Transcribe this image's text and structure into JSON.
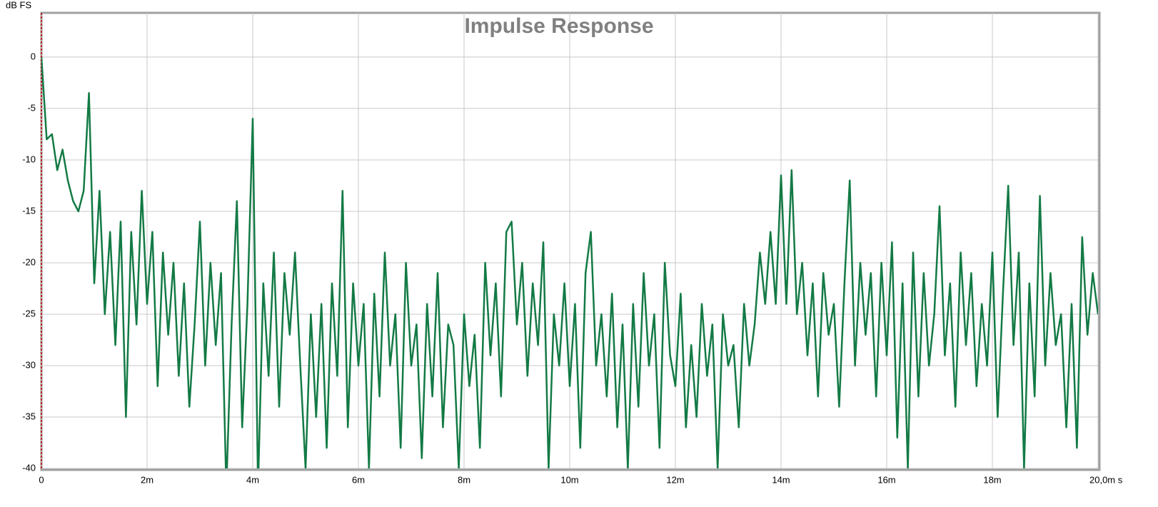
{
  "chart_data": {
    "type": "line",
    "title": "Impulse Response",
    "y_label": "dB FS",
    "color": "#137a45",
    "grid": true,
    "xlim": [
      0,
      20
    ],
    "ylim": [
      -40,
      4.3
    ],
    "xticks": [
      0,
      {
        "value": 2,
        "label": "2m"
      },
      {
        "value": 4,
        "label": "4m"
      },
      {
        "value": 6,
        "label": "6m"
      },
      {
        "value": 8,
        "label": "8m"
      },
      {
        "value": 10,
        "label": "10m"
      },
      {
        "value": 12,
        "label": "12m"
      },
      {
        "value": 14,
        "label": "14m"
      },
      {
        "value": 16,
        "label": "16m"
      },
      {
        "value": 18,
        "label": "18m"
      },
      {
        "value": 20,
        "label": "20,0m s"
      }
    ],
    "yticks": [
      0,
      -5,
      -10,
      -15,
      -20,
      -25,
      -30,
      -35,
      -40
    ],
    "x": [
      0,
      0.1,
      0.2,
      0.3,
      0.4,
      0.5,
      0.6,
      0.7,
      0.8,
      0.9,
      1,
      1.1,
      1.2,
      1.3,
      1.4,
      1.5,
      1.6,
      1.7,
      1.8,
      1.9,
      2,
      2.1,
      2.2,
      2.3,
      2.4,
      2.5,
      2.6,
      2.7,
      2.8,
      2.9,
      3,
      3.1,
      3.2,
      3.3,
      3.4,
      3.5,
      3.6,
      3.7,
      3.8,
      3.9,
      4,
      4.1,
      4.2,
      4.3,
      4.4,
      4.5,
      4.6,
      4.7,
      4.8,
      4.9,
      5,
      5.1,
      5.2,
      5.3,
      5.4,
      5.5,
      5.6,
      5.7,
      5.8,
      5.9,
      6,
      6.1,
      6.2,
      6.3,
      6.4,
      6.5,
      6.6,
      6.7,
      6.8,
      6.9,
      7,
      7.1,
      7.2,
      7.3,
      7.4,
      7.5,
      7.6,
      7.7,
      7.8,
      7.9,
      8,
      8.1,
      8.2,
      8.3,
      8.4,
      8.5,
      8.6,
      8.7,
      8.8,
      8.9,
      9,
      9.1,
      9.2,
      9.3,
      9.4,
      9.5,
      9.6,
      9.7,
      9.8,
      9.9,
      10,
      10.1,
      10.2,
      10.3,
      10.4,
      10.5,
      10.6,
      10.7,
      10.8,
      10.9,
      11,
      11.1,
      11.2,
      11.3,
      11.4,
      11.5,
      11.6,
      11.7,
      11.8,
      11.9,
      12,
      12.1,
      12.2,
      12.3,
      12.4,
      12.5,
      12.6,
      12.7,
      12.8,
      12.9,
      13,
      13.1,
      13.2,
      13.3,
      13.4,
      13.5,
      13.6,
      13.7,
      13.8,
      13.9,
      14,
      14.1,
      14.2,
      14.3,
      14.4,
      14.5,
      14.6,
      14.7,
      14.8,
      14.9,
      15,
      15.1,
      15.2,
      15.3,
      15.4,
      15.5,
      15.6,
      15.7,
      15.8,
      15.9,
      16,
      16.1,
      16.2,
      16.3,
      16.4,
      16.5,
      16.6,
      16.7,
      16.8,
      16.9,
      17,
      17.1,
      17.2,
      17.3,
      17.4,
      17.5,
      17.6,
      17.7,
      17.8,
      17.9,
      18,
      18.1,
      18.2,
      18.3,
      18.4,
      18.5,
      18.6,
      18.7,
      18.8,
      18.9,
      19,
      19.1,
      19.2,
      19.3,
      19.4,
      19.5,
      19.6,
      19.7,
      19.8,
      19.9,
      20
    ],
    "values": [
      0,
      -8,
      -7.5,
      -11,
      -9,
      -12,
      -14,
      -15,
      -13,
      -3.5,
      -22,
      -13,
      -25,
      -17,
      -28,
      -16,
      -35,
      -17,
      -26,
      -13,
      -24,
      -17,
      -32,
      -19,
      -27,
      -20,
      -31,
      -22,
      -34,
      -26,
      -16,
      -30,
      -20,
      -28,
      -21,
      -42,
      -26,
      -14,
      -36,
      -24,
      -6,
      -42,
      -22,
      -31,
      -19,
      -34,
      -21,
      -27,
      -19,
      -30,
      -40,
      -25,
      -35,
      -24,
      -38,
      -22,
      -31,
      -13,
      -36,
      -22,
      -30,
      -24,
      -40,
      -23,
      -33,
      -19,
      -30,
      -25,
      -38,
      -20,
      -30,
      -26,
      -39,
      -24,
      -33,
      -21,
      -36,
      -26,
      -28,
      -40,
      -25,
      -32,
      -27,
      -38,
      -20,
      -29,
      -22,
      -33,
      -17,
      -16,
      -26,
      -20,
      -31,
      -22,
      -28,
      -18,
      -40,
      -25,
      -30,
      -22,
      -32,
      -24,
      -38,
      -21,
      -17,
      -30,
      -25,
      -33,
      -23,
      -36,
      -26,
      -40,
      -24,
      -34,
      -21,
      -30,
      -25,
      -38,
      -20,
      -29,
      -32,
      -23,
      -36,
      -28,
      -35,
      -24,
      -31,
      -26,
      -40,
      -25,
      -30,
      -28,
      -36,
      -24,
      -30,
      -26,
      -19,
      -24,
      -17,
      -24,
      -11.5,
      -24,
      -11,
      -25,
      -20,
      -29,
      -22,
      -33,
      -21,
      -27,
      -24,
      -34,
      -22,
      -12,
      -30,
      -20,
      -27,
      -21,
      -33,
      -20,
      -29,
      -18,
      -37,
      -22,
      -40,
      -19,
      -33,
      -21,
      -30,
      -25,
      -14.5,
      -29,
      -22,
      -34,
      -19,
      -28,
      -21,
      -32,
      -24,
      -30,
      -19,
      -35,
      -23,
      -12.5,
      -28,
      -19,
      -40,
      -22,
      -33,
      -13.5,
      -30,
      -21,
      -28,
      -25,
      -36,
      -24,
      -38,
      -17.5,
      -27,
      -21,
      -25
    ]
  }
}
